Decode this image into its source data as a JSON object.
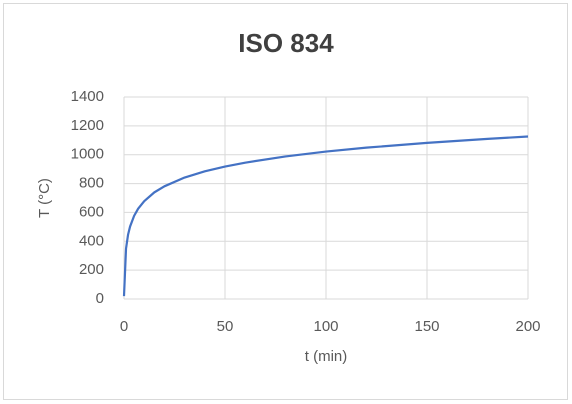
{
  "chart_data": {
    "type": "line",
    "title": "ISO 834",
    "x_label": "t (min)",
    "y_label": "T (°C)",
    "x": [
      0,
      1,
      2,
      3,
      5,
      7,
      10,
      15,
      20,
      30,
      40,
      50,
      60,
      80,
      100,
      120,
      150,
      180,
      200
    ],
    "series": [
      {
        "color": "#4472c4",
        "values": [
          20,
          349,
          445,
          502,
          576,
          626,
          678,
          739,
          781,
          842,
          885,
          918,
          945,
          988,
          1022,
          1049,
          1082,
          1110,
          1126
        ]
      }
    ],
    "xlim": [
      0,
      200
    ],
    "xticks": [
      0,
      50,
      100,
      150,
      200
    ],
    "ylim": [
      0,
      1400
    ],
    "yticks": [
      0,
      200,
      400,
      600,
      800,
      1000,
      1200,
      1400
    ],
    "grid": true
  }
}
